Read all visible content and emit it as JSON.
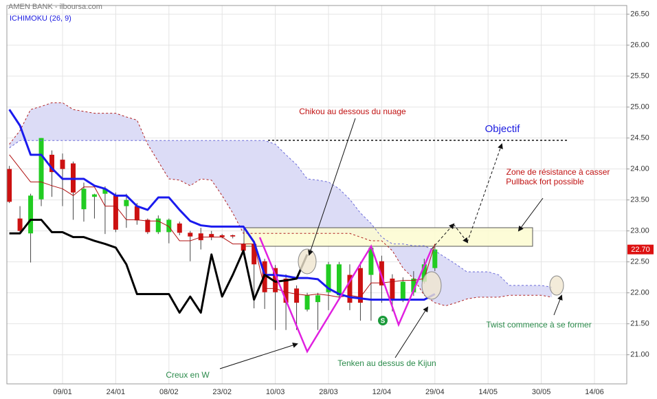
{
  "chart_data": {
    "type": "candlestick",
    "title": "AMEN BANK - ilboursa.com",
    "subtitle": "ICHIMOKU (26, 9)",
    "categories": [
      null,
      null,
      null,
      null,
      null,
      "09/01",
      null,
      null,
      null,
      null,
      "24/01",
      null,
      null,
      null,
      null,
      "08/02",
      null,
      null,
      null,
      null,
      "23/02",
      null,
      null,
      null,
      null,
      "10/03",
      null,
      null,
      null,
      null,
      "28/03",
      null,
      null,
      null,
      null,
      "12/04",
      null,
      null,
      null,
      null,
      "29/04",
      null,
      null,
      null,
      null,
      "14/05",
      null,
      null,
      null,
      null,
      "30/05",
      null,
      null,
      null,
      null,
      "14/06",
      null,
      null,
      null
    ],
    "open": [
      24.0,
      23.2,
      22.96,
      23.51,
      24.23,
      24.15,
      24.09,
      23.35,
      23.55,
      23.6,
      23.57,
      23.4,
      23.4,
      23.18,
      22.98,
      22.98,
      23.12,
      22.97,
      22.96,
      22.95,
      22.93,
      22.93,
      22.79,
      22.79,
      22.51,
      22.4,
      22.23,
      22.07,
      21.73,
      21.85,
      22.01,
      21.96,
      22.29,
      22.4,
      22.29,
      22.51,
      22.23,
      21.9,
      22.01,
      22.18,
      22.4,
      null,
      null,
      null,
      null,
      null,
      null,
      null,
      null,
      null,
      null,
      null,
      null,
      null,
      null,
      null,
      null,
      null,
      null
    ],
    "high": [
      24.05,
      23.4,
      23.6,
      24.5,
      24.3,
      24.25,
      24.12,
      23.78,
      23.6,
      23.72,
      23.62,
      23.6,
      23.45,
      23.2,
      23.25,
      23.2,
      23.15,
      23.0,
      23.05,
      23.0,
      22.95,
      22.94,
      22.8,
      22.8,
      22.55,
      22.45,
      22.3,
      22.12,
      22.0,
      22.0,
      22.5,
      22.5,
      22.46,
      22.5,
      22.75,
      22.6,
      22.3,
      22.25,
      22.35,
      22.55,
      22.75,
      null,
      null,
      null,
      null,
      null,
      null,
      null,
      null,
      null,
      null,
      null,
      null,
      null,
      null,
      null,
      null,
      null,
      null
    ],
    "low": [
      23.45,
      22.95,
      22.49,
      23.4,
      23.55,
      23.4,
      23.18,
      23.15,
      23.2,
      22.95,
      22.98,
      23.05,
      23.1,
      22.95,
      22.95,
      22.8,
      22.93,
      22.51,
      22.7,
      22.85,
      22.88,
      22.88,
      22.66,
      21.75,
      21.74,
      21.4,
      21.4,
      21.4,
      21.7,
      21.4,
      21.72,
      21.9,
      21.72,
      21.55,
      21.55,
      21.84,
      21.7,
      21.85,
      21.95,
      22.15,
      22.35,
      null,
      null,
      null,
      null,
      null,
      null,
      null,
      null,
      null,
      null,
      null,
      null,
      null,
      null,
      null,
      null,
      null,
      null
    ],
    "close": [
      23.47,
      23.0,
      23.57,
      24.5,
      23.95,
      24.0,
      23.62,
      23.68,
      23.59,
      23.68,
      23.02,
      23.5,
      23.17,
      22.98,
      23.2,
      23.18,
      22.97,
      22.91,
      22.85,
      22.9,
      22.9,
      22.91,
      22.68,
      22.46,
      22.01,
      22.01,
      21.84,
      21.84,
      21.96,
      21.96,
      22.46,
      22.46,
      21.84,
      21.84,
      22.73,
      22.12,
      21.9,
      22.18,
      22.23,
      22.46,
      22.7,
      null,
      null,
      null,
      null,
      null,
      null,
      null,
      null,
      null,
      null,
      null,
      null,
      null,
      null,
      null,
      null,
      null,
      null
    ],
    "up_color": "#22cc22",
    "down_color": "#cc1111",
    "lines": [
      {
        "color": "#6a6ad8",
        "style": "dashed",
        "values": [
          24.34,
          24.46,
          24.46,
          24.46,
          24.46,
          24.46,
          24.46,
          24.46,
          24.46,
          24.46,
          24.46,
          24.46,
          24.46,
          24.46,
          24.46,
          24.46,
          24.46,
          24.46,
          24.46,
          24.46,
          24.46,
          24.46,
          24.46,
          24.46,
          24.46,
          24.4,
          24.23,
          24.07,
          23.84,
          23.82,
          23.79,
          23.68,
          23.51,
          23.29,
          23.12,
          22.9,
          22.79,
          22.79,
          22.76,
          22.76,
          22.68,
          22.57,
          22.46,
          22.34,
          22.34,
          22.34,
          22.29,
          22.12,
          22.12,
          22.12,
          22.12,
          22.09,
          null,
          null,
          null,
          null,
          null,
          null,
          null
        ]
      },
      {
        "color": "#b02020",
        "style": "dashed",
        "values": [
          24.4,
          24.62,
          24.96,
          25.01,
          25.07,
          25.07,
          24.96,
          24.93,
          24.9,
          24.9,
          24.9,
          24.84,
          24.79,
          24.4,
          24.12,
          23.84,
          23.82,
          23.73,
          23.84,
          23.82,
          23.57,
          23.29,
          22.96,
          22.96,
          22.96,
          22.96,
          22.96,
          22.96,
          22.96,
          22.96,
          22.96,
          22.96,
          22.96,
          22.9,
          22.84,
          22.84,
          22.68,
          22.4,
          22.23,
          21.96,
          21.84,
          21.79,
          21.84,
          21.9,
          21.93,
          21.93,
          21.93,
          21.96,
          21.96,
          21.96,
          21.96,
          21.93,
          null,
          null,
          null,
          null,
          null,
          null,
          null
        ]
      },
      {
        "color": "#b01010",
        "style": "thin",
        "values": [
          24.23,
          24.01,
          23.79,
          23.79,
          23.73,
          23.68,
          23.57,
          23.71,
          23.71,
          23.4,
          23.4,
          23.18,
          23.18,
          23.16,
          23.16,
          23.07,
          22.84,
          22.84,
          22.9,
          22.9,
          22.9,
          22.79,
          22.79,
          22.79,
          22.07,
          22.07,
          22.01,
          21.98,
          21.96,
          21.98,
          21.96,
          21.93,
          21.96,
          21.93,
          22.16,
          22.16,
          22.18,
          22.2,
          22.2,
          22.23,
          22.79,
          null,
          null,
          null,
          null,
          null,
          null,
          null,
          null,
          null,
          null,
          null,
          null,
          null,
          null,
          null,
          null,
          null,
          null
        ]
      },
      {
        "color": "#1a1aee",
        "style": "thick",
        "values": [
          24.96,
          24.7,
          24.23,
          24.23,
          24.01,
          23.84,
          23.84,
          23.84,
          23.73,
          23.68,
          23.57,
          23.57,
          23.4,
          23.34,
          23.54,
          23.54,
          23.34,
          23.16,
          23.09,
          23.07,
          23.07,
          23.07,
          23.07,
          22.82,
          22.29,
          22.29,
          22.27,
          22.24,
          22.24,
          22.22,
          22.07,
          21.98,
          21.93,
          21.91,
          21.89,
          21.89,
          21.89,
          21.89,
          21.89,
          21.89,
          21.98,
          null,
          null,
          null,
          null,
          null,
          null,
          null,
          null,
          null,
          null,
          null,
          null,
          null,
          null,
          null,
          null,
          null,
          null
        ]
      },
      {
        "color": "#000000",
        "style": "thick",
        "values": [
          22.96,
          22.96,
          23.18,
          23.18,
          22.98,
          22.98,
          22.9,
          22.9,
          22.84,
          22.79,
          22.73,
          22.46,
          21.98,
          21.98,
          21.98,
          21.98,
          21.68,
          21.94,
          21.68,
          22.62,
          21.94,
          22.29,
          22.68,
          21.89,
          22.29,
          22.18,
          22.2,
          22.23,
          22.62,
          null,
          null,
          null,
          null,
          null,
          null,
          null,
          null,
          null,
          null,
          null,
          null,
          null,
          null,
          null,
          null,
          null,
          null,
          null,
          null,
          null,
          null,
          null,
          null,
          null,
          null,
          null,
          null,
          null,
          null
        ]
      }
    ],
    "cloud_color": "#dcdcf6",
    "ylim": [
      20.53,
      26.64
    ],
    "yticks": [
      {
        "value": 21,
        "label": "21.00"
      },
      {
        "value": 21.5,
        "label": "21.50"
      },
      {
        "value": 22,
        "label": "22.00"
      },
      {
        "value": 22.5,
        "label": "22.50"
      },
      {
        "value": 23,
        "label": "23.00"
      },
      {
        "value": 23.5,
        "label": "23.50"
      },
      {
        "value": 24,
        "label": "24.00"
      },
      {
        "value": 24.5,
        "label": "24.50"
      },
      {
        "value": 25,
        "label": "25.00"
      },
      {
        "value": 25.5,
        "label": "25.50"
      },
      {
        "value": 26,
        "label": "26.00"
      },
      {
        "value": 26.5,
        "label": "26.50"
      }
    ],
    "last_price": {
      "value": 22.7,
      "label": "22.70",
      "color": "#dd1111"
    },
    "grid": true,
    "annotations": [
      "Chikou au dessous du nuage",
      "Objectif",
      "Zone de résistance à casser",
      "Pullback fort possible",
      "Twist commence à se former",
      "Tenken au dessus de Kijun",
      "Creux en W"
    ],
    "signal": "S"
  }
}
